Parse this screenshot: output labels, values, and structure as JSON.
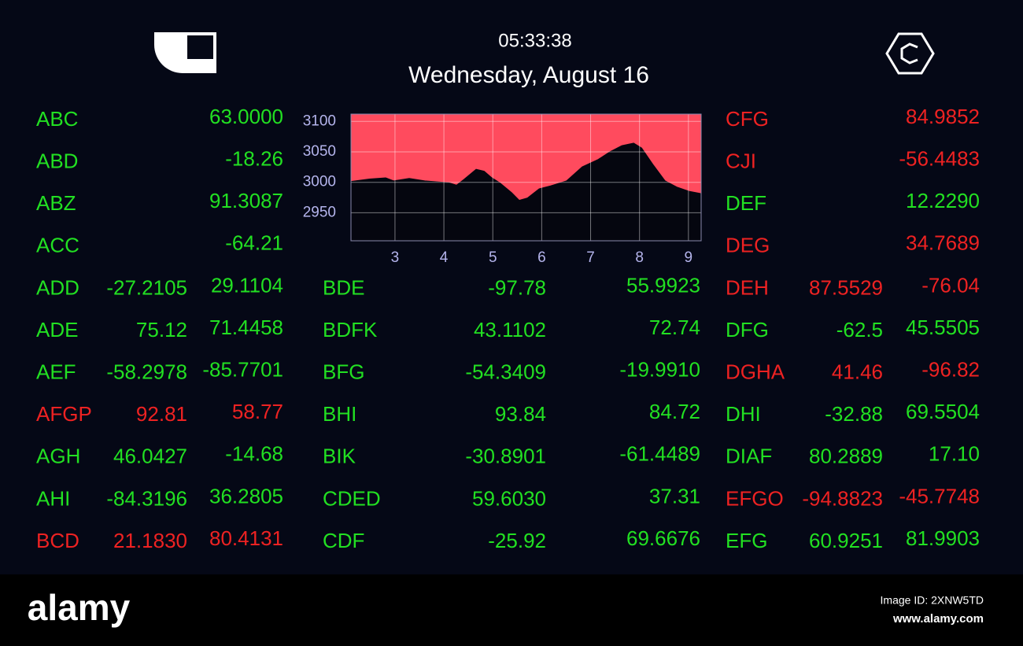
{
  "header": {
    "time": "05:33:38",
    "date": "Wednesday, August 16"
  },
  "chart_data": {
    "type": "area",
    "x": [
      2.1,
      2.48,
      2.81,
      2.97,
      3.29,
      3.61,
      4.1,
      4.26,
      4.42,
      4.66,
      4.82,
      4.98,
      5.14,
      5.38,
      5.54,
      5.71,
      5.95,
      6.19,
      6.51,
      6.83,
      7.15,
      7.4,
      7.64,
      7.88,
      8.04,
      8.28,
      8.52,
      8.76,
      9.01,
      9.26
    ],
    "values": [
      3001,
      3005,
      3007,
      3002,
      3006,
      3002,
      2999,
      2995,
      3005,
      3021,
      3018,
      3007,
      2999,
      2983,
      2970,
      2974,
      2989,
      2994,
      3002,
      3025,
      3037,
      3050,
      3060,
      3064,
      3056,
      3028,
      3002,
      2992,
      2985,
      2981
    ],
    "xlim": [
      2.1,
      9.26
    ],
    "ylim": [
      2904,
      3112
    ],
    "xticks": [
      3,
      4,
      5,
      6,
      7,
      8,
      9
    ],
    "yticks": [
      2950,
      3000,
      3050,
      3100
    ],
    "grid": true,
    "color": "#05060f",
    "background": "#ff4b5e"
  },
  "tables": [
    {
      "rows": [
        {
          "symbol": "ABC",
          "cells": [
            "63.0000"
          ],
          "color": "#22e022"
        },
        {
          "symbol": "ABD",
          "cells": [
            "-18.26"
          ],
          "color": "#22e022"
        },
        {
          "symbol": "ABZ",
          "cells": [
            "91.3087"
          ],
          "color": "#22e022"
        },
        {
          "symbol": "ACC",
          "cells": [
            "-64.21"
          ],
          "color": "#22e022"
        },
        {
          "symbol": "ADD",
          "cells": [
            "-27.2105",
            "29.1104"
          ],
          "color": "#22e022"
        },
        {
          "symbol": "ADE",
          "cells": [
            "75.12",
            "71.4458"
          ],
          "color": "#22e022"
        },
        {
          "symbol": "AEF",
          "cells": [
            "-58.2978",
            "-85.7701"
          ],
          "color": "#22e022"
        },
        {
          "symbol": "AFGP",
          "cells": [
            "92.81",
            "58.77"
          ],
          "color": "#ee2222"
        },
        {
          "symbol": "AGH",
          "cells": [
            "46.0427",
            "-14.68"
          ],
          "color": "#22e022"
        },
        {
          "symbol": "AHI",
          "cells": [
            "-84.3196",
            "36.2805"
          ],
          "color": "#22e022"
        },
        {
          "symbol": "BCD",
          "cells": [
            "21.1830",
            "80.4131"
          ],
          "color": "#ee2222"
        }
      ]
    },
    {
      "rows": [
        {
          "symbol": "BDE",
          "cells": [
            "-97.78",
            "55.9923"
          ],
          "color": "#22e022"
        },
        {
          "symbol": "BDFK",
          "cells": [
            "43.1102",
            "72.74"
          ],
          "color": "#22e022"
        },
        {
          "symbol": "BFG",
          "cells": [
            "-54.3409",
            "-19.9910"
          ],
          "color": "#22e022"
        },
        {
          "symbol": "BHI",
          "cells": [
            "93.84",
            "84.72"
          ],
          "color": "#22e022"
        },
        {
          "symbol": "BIK",
          "cells": [
            "-30.8901",
            "-61.4489"
          ],
          "color": "#22e022"
        },
        {
          "symbol": "CDED",
          "cells": [
            "59.6030",
            "37.31"
          ],
          "color": "#22e022"
        },
        {
          "symbol": "CDF",
          "cells": [
            "-25.92",
            "69.6676"
          ],
          "color": "#22e022"
        }
      ]
    },
    {
      "rows": [
        {
          "symbol": "CFG",
          "cells": [
            "84.9852"
          ],
          "color": "#ee2222"
        },
        {
          "symbol": "CJI",
          "cells": [
            "-56.4483"
          ],
          "color": "#ee2222"
        },
        {
          "symbol": "DEF",
          "cells": [
            "12.2290"
          ],
          "color": "#22e022"
        },
        {
          "symbol": "DEG",
          "cells": [
            "34.7689"
          ],
          "color": "#ee2222"
        },
        {
          "symbol": "DEH",
          "cells": [
            "87.5529",
            "-76.04"
          ],
          "color": "#ee2222"
        },
        {
          "symbol": "DFG",
          "cells": [
            "-62.5",
            "45.5505"
          ],
          "color": "#22e022"
        },
        {
          "symbol": "DGHA",
          "cells": [
            "41.46",
            "-96.82"
          ],
          "color": "#ee2222"
        },
        {
          "symbol": "DHI",
          "cells": [
            "-32.88",
            "69.5504"
          ],
          "color": "#22e022"
        },
        {
          "symbol": "DIAF",
          "cells": [
            "80.2889",
            "17.10"
          ],
          "color": "#22e022"
        },
        {
          "symbol": "EFGO",
          "cells": [
            "-94.8823",
            "-45.7748"
          ],
          "color": "#ee2222"
        },
        {
          "symbol": "EFG",
          "cells": [
            "60.9251",
            "81.9903"
          ],
          "color": "#22e022"
        }
      ]
    }
  ],
  "footer": {
    "logo": "alamy",
    "image_id": "Image ID: 2XNW5TD",
    "url": "www.alamy.com"
  }
}
